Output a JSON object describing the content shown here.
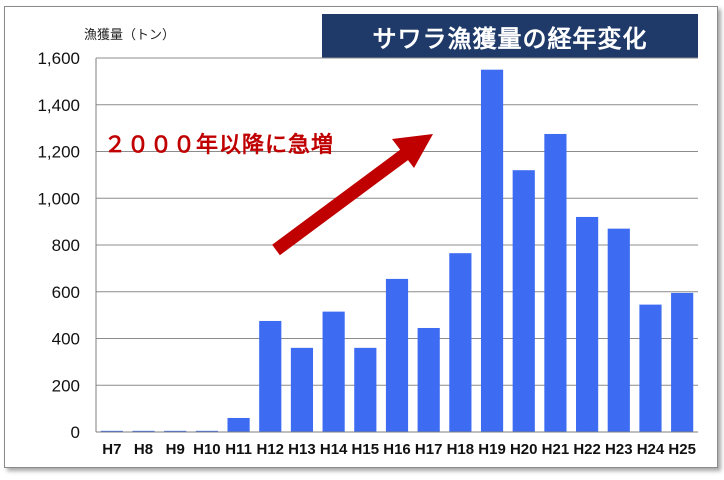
{
  "chart_data": {
    "type": "bar",
    "title": "サワラ漁獲量の経年変化",
    "ylabel": "漁獲量（トン）",
    "annotation": "２０００年以降に急増",
    "ylim": [
      0,
      1600
    ],
    "yticks": [
      "0",
      "200",
      "400",
      "600",
      "800",
      "1,000",
      "1,200",
      "1,400",
      "1,600"
    ],
    "ytick_values": [
      0,
      200,
      400,
      600,
      800,
      1000,
      1200,
      1400,
      1600
    ],
    "grid": true,
    "categories": [
      "H7",
      "H8",
      "H9",
      "H10",
      "H11",
      "H12",
      "H13",
      "H14",
      "H15",
      "H16",
      "H17",
      "H18",
      "H19",
      "H20",
      "H21",
      "H22",
      "H23",
      "H24",
      "H25"
    ],
    "values": [
      5,
      5,
      5,
      5,
      60,
      475,
      360,
      515,
      360,
      655,
      445,
      765,
      1550,
      1120,
      1275,
      920,
      870,
      545,
      595
    ],
    "bar_color": "#3d6cf2",
    "arrow_color": "#c00000"
  }
}
